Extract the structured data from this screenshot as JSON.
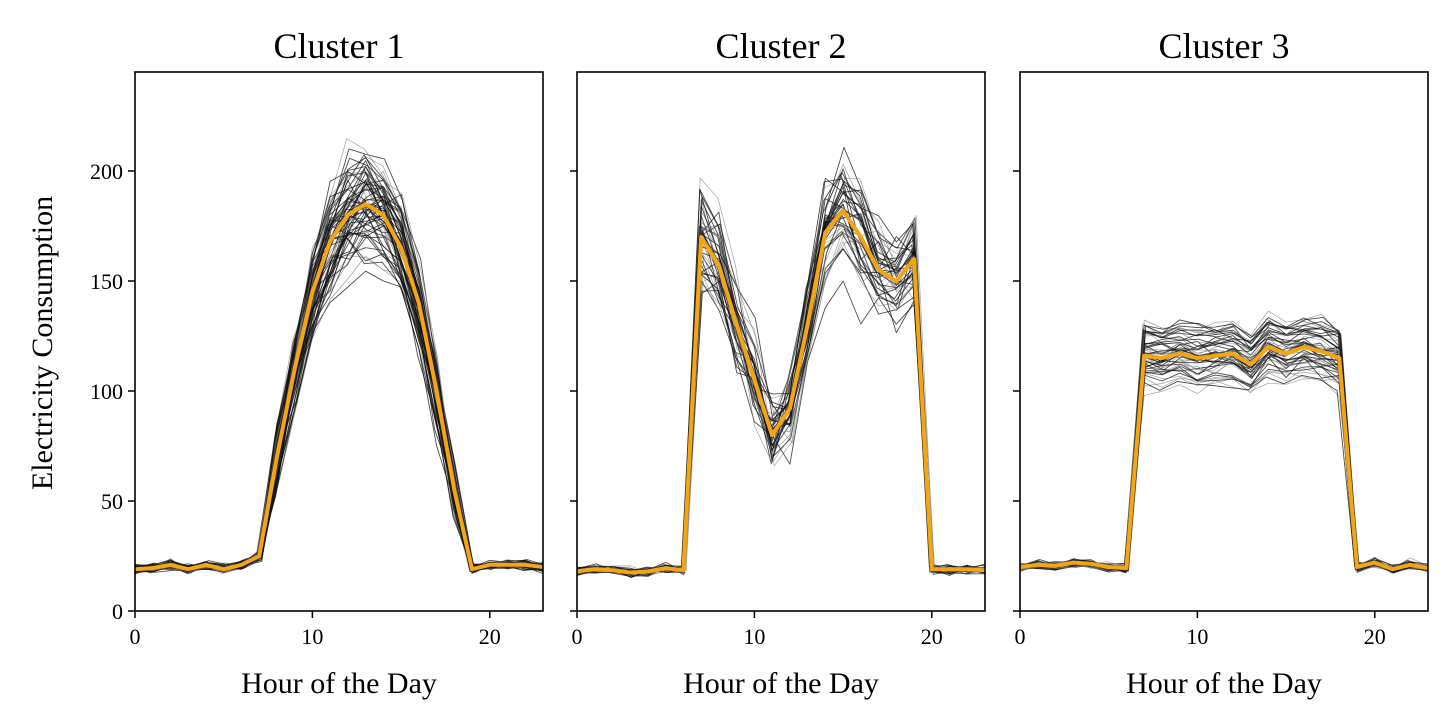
{
  "chart_data": {
    "type": "line",
    "layout": "3 panels side by side, shared y axis",
    "ylabel": "Electricity Consumption",
    "ylim": [
      0,
      245
    ],
    "yticks": [
      0,
      50,
      100,
      150,
      200
    ],
    "grid": false,
    "legend": "none",
    "member_color": "#000000",
    "centroid_color": "#f5a511",
    "panels": [
      {
        "title": "Cluster 1",
        "xlabel": "Hour of the Day",
        "xlim": [
          0,
          23
        ],
        "xticks": [
          0,
          10,
          20
        ],
        "member_count": 70,
        "spread": {
          "base": 1.5,
          "active": 18
        },
        "series": [
          {
            "name": "",
            "role": "cluster centroid",
            "x": [
              0,
              1,
              2,
              3,
              4,
              5,
              6,
              7,
              8,
              9,
              10,
              11,
              12,
              13,
              14,
              15,
              16,
              17,
              18,
              19,
              20,
              21,
              22,
              23
            ],
            "y": [
              19,
              19.5,
              21,
              19,
              21,
              19,
              21,
              25,
              70,
              110,
              145,
              168,
              180,
              185,
              180,
              165,
              140,
              100,
              55,
              19,
              21,
              21,
              21,
              20
            ]
          }
        ]
      },
      {
        "title": "Cluster 2",
        "xlabel": "Hour of the Day",
        "xlim": [
          0,
          23
        ],
        "xticks": [
          0,
          10,
          20
        ],
        "member_count": 45,
        "spread": {
          "base": 1.5,
          "active": 22
        },
        "series": [
          {
            "name": "",
            "role": "cluster centroid",
            "x": [
              0,
              1,
              2,
              3,
              4,
              5,
              6,
              7,
              8,
              9,
              10,
              11,
              12,
              13,
              14,
              15,
              16,
              17,
              18,
              19,
              20,
              21,
              22,
              23
            ],
            "y": [
              18,
              19,
              18.5,
              17.5,
              18,
              19.5,
              18.5,
              170,
              157,
              130,
              105,
              80,
              92,
              130,
              172,
              182,
              170,
              155,
              150,
              160,
              19,
              19,
              19,
              18.5
            ]
          }
        ]
      },
      {
        "title": "Cluster 3",
        "xlabel": "Hour of the Day",
        "xlim": [
          0,
          23
        ],
        "xticks": [
          0,
          10,
          20
        ],
        "member_count": 55,
        "spread": {
          "base": 1.5,
          "active": 6
        },
        "series": [
          {
            "name": "",
            "role": "cluster centroid",
            "x": [
              0,
              1,
              2,
              3,
              4,
              5,
              6,
              7,
              8,
              9,
              10,
              11,
              12,
              13,
              14,
              15,
              16,
              17,
              18,
              19,
              20,
              21,
              22,
              23
            ],
            "y": [
              20,
              21,
              20.5,
              22,
              21.5,
              20,
              19.5,
              116,
              115,
              117,
              115,
              116,
              117,
              112,
              120,
              117,
              120,
              118,
              115,
              20,
              22,
              19,
              21,
              19.5
            ]
          }
        ]
      }
    ]
  }
}
